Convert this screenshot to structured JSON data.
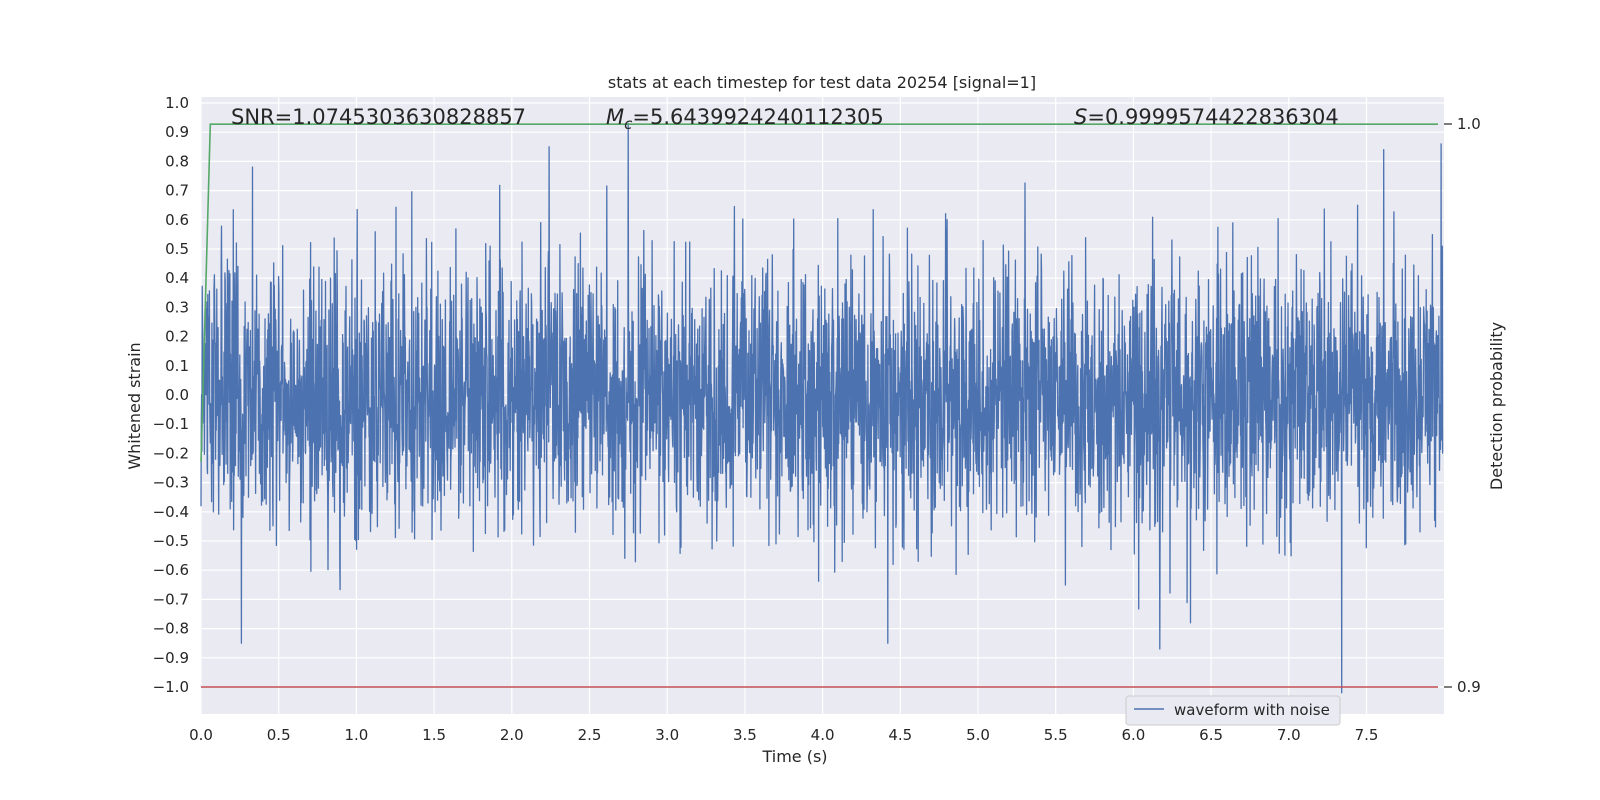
{
  "chart_data": {
    "type": "line",
    "title": "stats at each timestep for test data 20254 [signal=1]",
    "xlabel": "Time (s)",
    "ylabel": "Whitened strain",
    "y2label": "Detection probability",
    "xlim": [
      0.0,
      8.0
    ],
    "ylim": [
      -1.09,
      1.0
    ],
    "y2lim": [
      0.9,
      1.0
    ],
    "grid": true,
    "legend_position": "lower-right",
    "x_ticks": [
      "0.0",
      "0.5",
      "1.0",
      "1.5",
      "2.0",
      "2.5",
      "3.0",
      "3.5",
      "4.0",
      "4.5",
      "5.0",
      "5.5",
      "6.0",
      "6.5",
      "7.0",
      "7.5"
    ],
    "y_ticks": [
      "1.0",
      "0.9",
      "0.8",
      "0.7",
      "0.6",
      "0.5",
      "0.4",
      "0.3",
      "0.2",
      "0.1",
      "0.0",
      "−0.1",
      "−0.2",
      "−0.3",
      "−0.4",
      "−0.5",
      "−0.6",
      "−0.7",
      "−0.8",
      "−0.9",
      "−1.0"
    ],
    "y2_ticks": [
      "1.0",
      "0.9"
    ],
    "annotations": {
      "snr": "SNR=1.0745303630828857",
      "mc_symbol": "M",
      "mc_sub": "c",
      "mc_value": "=5.6439924240112305",
      "s_symbol": "S",
      "s_value": "=0.9999574422836304"
    },
    "series": [
      {
        "name": "waveform with noise",
        "axis": "left",
        "color": "#4c72b0",
        "description": "whitened strain noise, amplitude mostly within ±0.5 with spikes reaching ~±0.9",
        "n_samples": 4000,
        "x_range": [
          0.0,
          7.99
        ],
        "peaks": [
          {
            "x": 2.75,
            "y": 0.93
          },
          {
            "x": 7.98,
            "y": 0.86
          },
          {
            "x": 2.24,
            "y": 0.85
          },
          {
            "x": 7.61,
            "y": 0.84
          },
          {
            "x": 7.34,
            "y": -1.02
          },
          {
            "x": 6.17,
            "y": -0.87
          },
          {
            "x": 4.42,
            "y": -0.85
          },
          {
            "x": 0.26,
            "y": -0.85
          }
        ]
      },
      {
        "axis": "right",
        "color": "#55a868",
        "x": [
          0.0,
          0.06,
          7.96
        ],
        "y": [
          0.94,
          0.99996,
          0.99996
        ]
      },
      {
        "axis": "right",
        "color": "#c44e52",
        "x": [
          0.0,
          7.96
        ],
        "y": [
          0.9,
          0.9
        ]
      }
    ]
  }
}
